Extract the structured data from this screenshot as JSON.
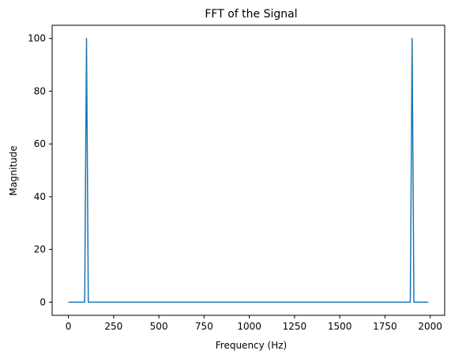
{
  "chart_data": {
    "type": "line",
    "title": "FFT of the Signal",
    "xlabel": "Frequency (Hz)",
    "ylabel": "Magnitude",
    "xlim": [
      -90,
      2080
    ],
    "ylim": [
      -5,
      105
    ],
    "xticks": [
      0,
      250,
      500,
      750,
      1000,
      1250,
      1500,
      1750,
      2000
    ],
    "yticks": [
      0,
      20,
      40,
      60,
      80,
      100
    ],
    "grid": false,
    "series": [
      {
        "color": "#1f77b4",
        "x": [
          0,
          90,
          100,
          110,
          1890,
          1900,
          1910,
          1990
        ],
        "y": [
          0,
          0,
          100,
          0,
          0,
          100,
          0,
          0
        ]
      }
    ]
  }
}
